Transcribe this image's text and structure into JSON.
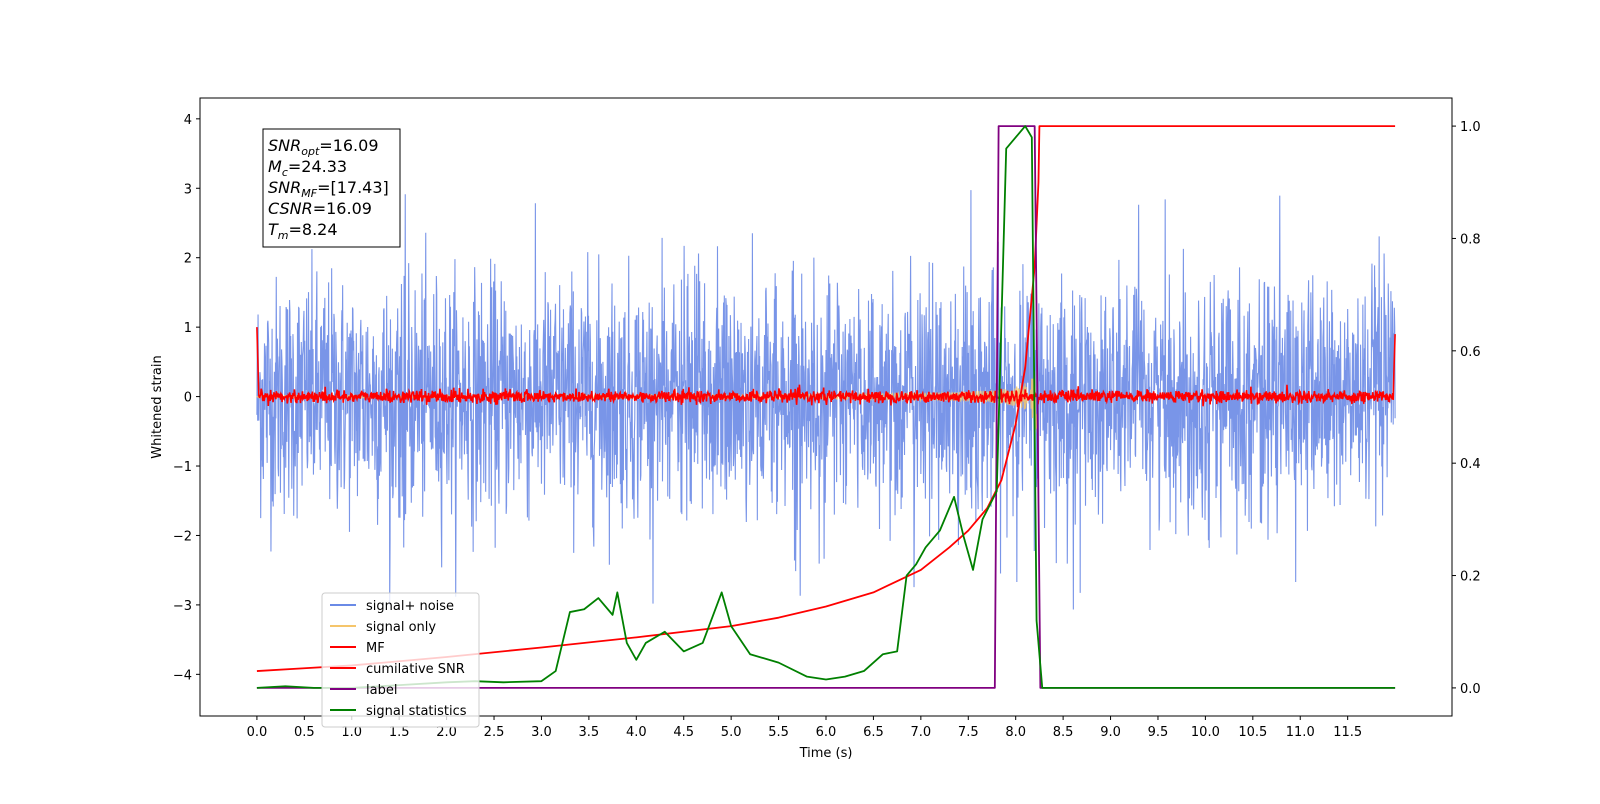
{
  "chart_data": {
    "type": "line",
    "title": "",
    "xlabel": "Time (s)",
    "ylabel": "Whitened strain",
    "xlim": [
      -0.6,
      12.6
    ],
    "ylim": [
      -4.6,
      4.3
    ],
    "y2lim": [
      -0.05,
      1.05
    ],
    "grid": false,
    "legend_position": "lower-left",
    "x_ticks": [
      "0.0",
      "0.5",
      "1.0",
      "1.5",
      "2.0",
      "2.5",
      "3.0",
      "3.5",
      "4.0",
      "4.5",
      "5.0",
      "5.5",
      "6.0",
      "6.5",
      "7.0",
      "7.5",
      "8.0",
      "8.5",
      "9.0",
      "9.5",
      "10.0",
      "10.5",
      "11.0",
      "11.5"
    ],
    "y_ticks": [
      "4",
      "3",
      "2",
      "1",
      "0",
      "−1",
      "−2",
      "−3",
      "−4"
    ],
    "y2_ticks": [
      "1.0",
      "0.8",
      "0.6",
      "0.4",
      "0.2",
      "0.0"
    ],
    "info_box": [
      {
        "base": "SNR",
        "sub": "opt",
        "value": "=16.09"
      },
      {
        "base": "M",
        "sub": "c",
        "value": "=24.33"
      },
      {
        "base": "SNR",
        "sub": "MF",
        "value": "=[17.43]"
      },
      {
        "base": "CSNR",
        "sub": "",
        "value": "=16.09"
      },
      {
        "base": "T",
        "sub": "m",
        "value": "=8.24"
      }
    ],
    "series": [
      {
        "name": "signal+ noise",
        "color": "#6a8ae6",
        "axis": "left",
        "description_values": {
          "x_range": [
            0,
            12
          ],
          "amplitude_typical": 1.5,
          "amplitude_peak": 3.0
        }
      },
      {
        "name": "signal only",
        "color": "#f5c56b",
        "axis": "left",
        "description_values": {
          "x_range": [
            0,
            8.24
          ],
          "peak_amplitude": 1.0
        }
      },
      {
        "name": "MF",
        "color": "#ff0000",
        "axis": "left",
        "description_values": {
          "x_range": [
            0,
            12
          ],
          "amplitude": 0.1
        }
      },
      {
        "name": "cumilative SNR",
        "color": "#ff0000",
        "axis": "right",
        "x": [
          0.0,
          0.5,
          1.0,
          2.0,
          3.0,
          4.0,
          5.0,
          5.5,
          6.0,
          6.5,
          7.0,
          7.3,
          7.5,
          7.7,
          7.85,
          8.0,
          8.1,
          8.2,
          8.24,
          8.25,
          12.0
        ],
        "values": [
          0.03,
          0.035,
          0.04,
          0.055,
          0.072,
          0.09,
          0.11,
          0.125,
          0.145,
          0.17,
          0.21,
          0.25,
          0.28,
          0.32,
          0.37,
          0.47,
          0.57,
          0.75,
          0.9,
          1.0,
          1.0
        ]
      },
      {
        "name": "label",
        "color": "#800080",
        "axis": "right",
        "x": [
          0.0,
          7.78,
          7.82,
          8.2,
          8.26,
          12.0
        ],
        "values": [
          0.0,
          0.0,
          1.0,
          1.0,
          0.0,
          0.0
        ]
      },
      {
        "name": "signal statistics",
        "color": "#008000",
        "axis": "right",
        "x": [
          0.0,
          0.3,
          0.6,
          1.0,
          1.5,
          2.0,
          2.3,
          2.6,
          3.0,
          3.15,
          3.3,
          3.45,
          3.6,
          3.75,
          3.8,
          3.9,
          4.0,
          4.1,
          4.3,
          4.5,
          4.7,
          4.9,
          5.0,
          5.2,
          5.5,
          5.8,
          6.0,
          6.2,
          6.4,
          6.6,
          6.75,
          6.85,
          6.95,
          7.05,
          7.2,
          7.35,
          7.45,
          7.55,
          7.65,
          7.8,
          7.9,
          8.0,
          8.1,
          8.17,
          8.22,
          8.28,
          8.3,
          12.0
        ],
        "values": [
          0.0,
          0.003,
          0.0,
          0.0,
          0.005,
          0.01,
          0.012,
          0.01,
          0.012,
          0.03,
          0.135,
          0.14,
          0.16,
          0.13,
          0.17,
          0.08,
          0.05,
          0.08,
          0.1,
          0.065,
          0.08,
          0.17,
          0.11,
          0.06,
          0.045,
          0.02,
          0.015,
          0.02,
          0.03,
          0.06,
          0.065,
          0.2,
          0.22,
          0.25,
          0.28,
          0.34,
          0.27,
          0.21,
          0.3,
          0.35,
          0.96,
          0.98,
          1.0,
          0.98,
          0.12,
          0.0,
          0.0,
          0.0
        ]
      }
    ]
  }
}
